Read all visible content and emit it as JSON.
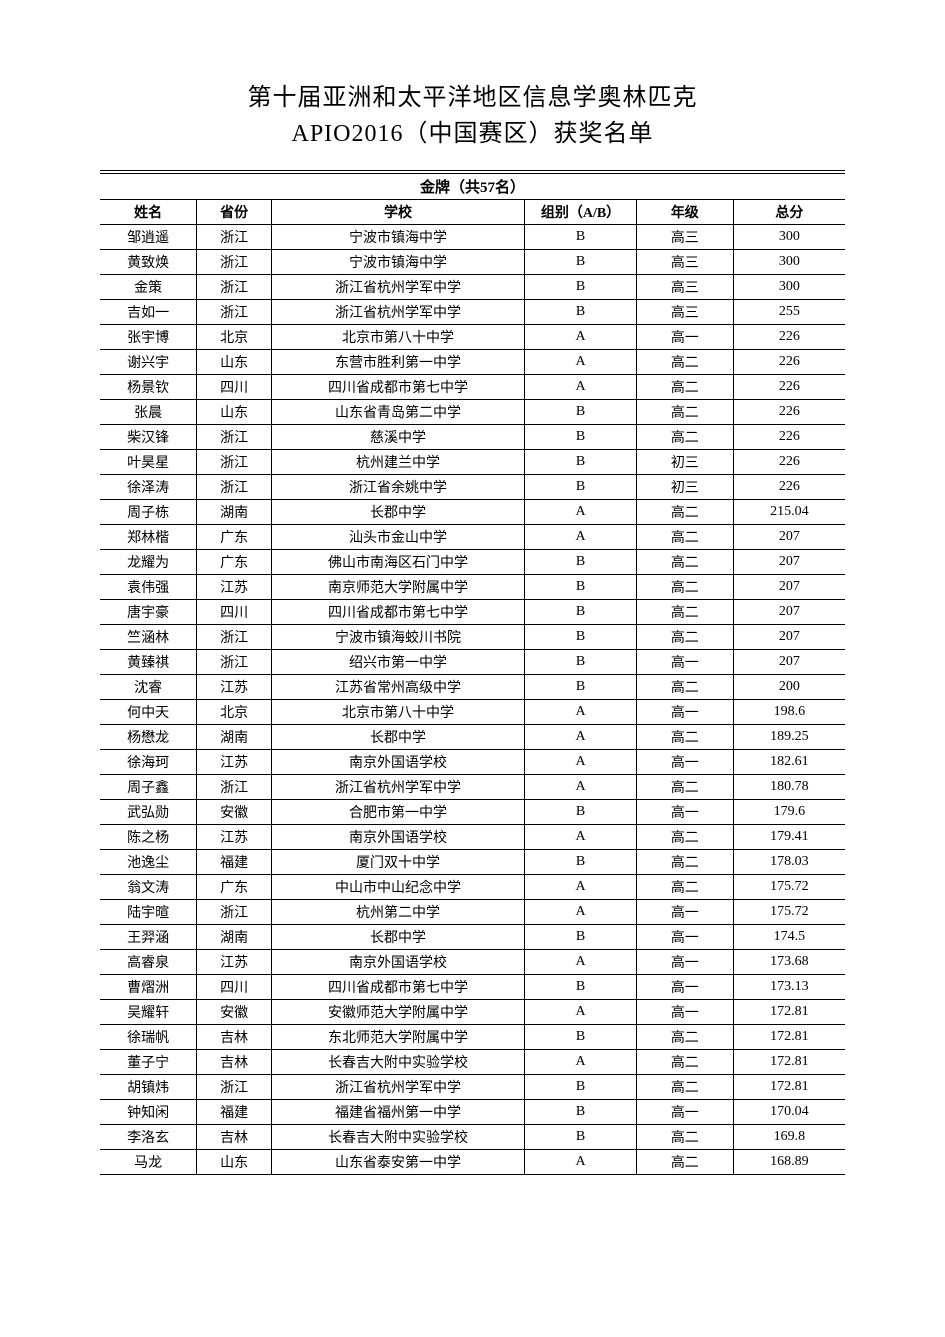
{
  "title": {
    "line1": "第十届亚洲和太平洋地区信息学奥林匹克",
    "line2": "APIO2016（中国赛区）获奖名单"
  },
  "table": {
    "section_title": "金牌（共57名）",
    "columns": {
      "name": "姓名",
      "province": "省份",
      "school": "学校",
      "group": "组别（A/B）",
      "grade": "年级",
      "score": "总分"
    },
    "column_widths_pct": [
      13,
      10,
      34,
      15,
      13,
      15
    ],
    "border_color": "#000000",
    "background_color": "#ffffff",
    "font_size_pt": 11,
    "header_font_weight": "bold",
    "rows": [
      {
        "name": "邹逍遥",
        "province": "浙江",
        "school": "宁波市镇海中学",
        "group": "B",
        "grade": "高三",
        "score": "300"
      },
      {
        "name": "黄致焕",
        "province": "浙江",
        "school": "宁波市镇海中学",
        "group": "B",
        "grade": "高三",
        "score": "300"
      },
      {
        "name": "金策",
        "province": "浙江",
        "school": "浙江省杭州学军中学",
        "group": "B",
        "grade": "高三",
        "score": "300"
      },
      {
        "name": "吉如一",
        "province": "浙江",
        "school": "浙江省杭州学军中学",
        "group": "B",
        "grade": "高三",
        "score": "255"
      },
      {
        "name": "张宇博",
        "province": "北京",
        "school": "北京市第八十中学",
        "group": "A",
        "grade": "高一",
        "score": "226"
      },
      {
        "name": "谢兴宇",
        "province": "山东",
        "school": "东营市胜利第一中学",
        "group": "A",
        "grade": "高二",
        "score": "226"
      },
      {
        "name": "杨景钦",
        "province": "四川",
        "school": "四川省成都市第七中学",
        "group": "A",
        "grade": "高二",
        "score": "226"
      },
      {
        "name": "张晨",
        "province": "山东",
        "school": "山东省青岛第二中学",
        "group": "B",
        "grade": "高二",
        "score": "226"
      },
      {
        "name": "柴汉锋",
        "province": "浙江",
        "school": "慈溪中学",
        "group": "B",
        "grade": "高二",
        "score": "226"
      },
      {
        "name": "叶昊星",
        "province": "浙江",
        "school": "杭州建兰中学",
        "group": "B",
        "grade": "初三",
        "score": "226"
      },
      {
        "name": "徐泽涛",
        "province": "浙江",
        "school": "浙江省余姚中学",
        "group": "B",
        "grade": "初三",
        "score": "226"
      },
      {
        "name": "周子栋",
        "province": "湖南",
        "school": "长郡中学",
        "group": "A",
        "grade": "高二",
        "score": "215.04"
      },
      {
        "name": "郑林楷",
        "province": "广东",
        "school": "汕头市金山中学",
        "group": "A",
        "grade": "高二",
        "score": "207"
      },
      {
        "name": "龙耀为",
        "province": "广东",
        "school": "佛山市南海区石门中学",
        "group": "B",
        "grade": "高二",
        "score": "207"
      },
      {
        "name": "袁伟强",
        "province": "江苏",
        "school": "南京师范大学附属中学",
        "group": "B",
        "grade": "高二",
        "score": "207"
      },
      {
        "name": "唐宇豪",
        "province": "四川",
        "school": "四川省成都市第七中学",
        "group": "B",
        "grade": "高二",
        "score": "207"
      },
      {
        "name": "竺涵林",
        "province": "浙江",
        "school": "宁波市镇海蛟川书院",
        "group": "B",
        "grade": "高二",
        "score": "207"
      },
      {
        "name": "黄臻祺",
        "province": "浙江",
        "school": "绍兴市第一中学",
        "group": "B",
        "grade": "高一",
        "score": "207"
      },
      {
        "name": "沈睿",
        "province": "江苏",
        "school": "江苏省常州高级中学",
        "group": "B",
        "grade": "高二",
        "score": "200"
      },
      {
        "name": "何中天",
        "province": "北京",
        "school": "北京市第八十中学",
        "group": "A",
        "grade": "高一",
        "score": "198.6"
      },
      {
        "name": "杨懋龙",
        "province": "湖南",
        "school": "长郡中学",
        "group": "A",
        "grade": "高二",
        "score": "189.25"
      },
      {
        "name": "徐海珂",
        "province": "江苏",
        "school": "南京外国语学校",
        "group": "A",
        "grade": "高一",
        "score": "182.61"
      },
      {
        "name": "周子鑫",
        "province": "浙江",
        "school": "浙江省杭州学军中学",
        "group": "A",
        "grade": "高二",
        "score": "180.78"
      },
      {
        "name": "武弘勋",
        "province": "安徽",
        "school": "合肥市第一中学",
        "group": "B",
        "grade": "高一",
        "score": "179.6"
      },
      {
        "name": "陈之杨",
        "province": "江苏",
        "school": "南京外国语学校",
        "group": "A",
        "grade": "高二",
        "score": "179.41"
      },
      {
        "name": "池逸尘",
        "province": "福建",
        "school": "厦门双十中学",
        "group": "B",
        "grade": "高二",
        "score": "178.03"
      },
      {
        "name": "翁文涛",
        "province": "广东",
        "school": "中山市中山纪念中学",
        "group": "A",
        "grade": "高二",
        "score": "175.72"
      },
      {
        "name": "陆宇暄",
        "province": "浙江",
        "school": "杭州第二中学",
        "group": "A",
        "grade": "高一",
        "score": "175.72"
      },
      {
        "name": "王羿涵",
        "province": "湖南",
        "school": "长郡中学",
        "group": "B",
        "grade": "高一",
        "score": "174.5"
      },
      {
        "name": "高睿泉",
        "province": "江苏",
        "school": "南京外国语学校",
        "group": "A",
        "grade": "高一",
        "score": "173.68"
      },
      {
        "name": "曹熠洲",
        "province": "四川",
        "school": "四川省成都市第七中学",
        "group": "B",
        "grade": "高一",
        "score": "173.13"
      },
      {
        "name": "吴耀轩",
        "province": "安徽",
        "school": "安徽师范大学附属中学",
        "group": "A",
        "grade": "高一",
        "score": "172.81"
      },
      {
        "name": "徐瑞帆",
        "province": "吉林",
        "school": "东北师范大学附属中学",
        "group": "B",
        "grade": "高二",
        "score": "172.81"
      },
      {
        "name": "董子宁",
        "province": "吉林",
        "school": "长春吉大附中实验学校",
        "group": "A",
        "grade": "高二",
        "score": "172.81"
      },
      {
        "name": "胡镇炜",
        "province": "浙江",
        "school": "浙江省杭州学军中学",
        "group": "B",
        "grade": "高二",
        "score": "172.81"
      },
      {
        "name": "钟知闲",
        "province": "福建",
        "school": "福建省福州第一中学",
        "group": "B",
        "grade": "高一",
        "score": "170.04"
      },
      {
        "name": "李洛玄",
        "province": "吉林",
        "school": "长春吉大附中实验学校",
        "group": "B",
        "grade": "高二",
        "score": "169.8"
      },
      {
        "name": "马龙",
        "province": "山东",
        "school": "山东省泰安第一中学",
        "group": "A",
        "grade": "高二",
        "score": "168.89"
      }
    ]
  }
}
